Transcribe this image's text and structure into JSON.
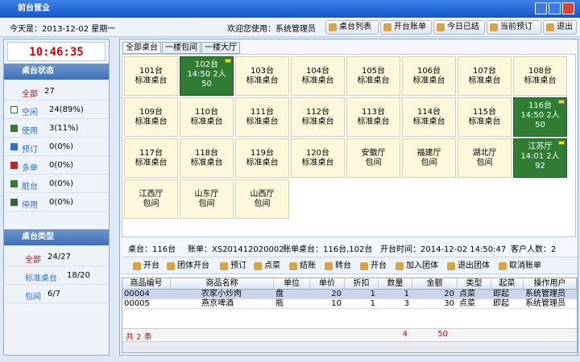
{
  "window": {
    "title": "前台营业"
  },
  "header": {
    "date": "今天是：2013-12-02 星期一",
    "welcome": "欢迎您使用：系统管理员",
    "buttons": [
      "桌台列表",
      "开台账单",
      "今日已结",
      "当前预订",
      "退出"
    ]
  },
  "sidebar": {
    "clock": "10:46:35",
    "status_title": "桌台状态",
    "status": [
      {
        "label": "全部",
        "count": "27"
      },
      {
        "label": "空闲",
        "count": "24(89%)"
      },
      {
        "label": "使用",
        "count": "3(11%)"
      },
      {
        "label": "预订",
        "count": "0(0%)"
      },
      {
        "label": "多单",
        "count": "0(0%)"
      },
      {
        "label": "脏台",
        "count": "0(0%)"
      },
      {
        "label": "停用",
        "count": "0(0%)"
      }
    ],
    "type_title": "桌台类型",
    "types": [
      {
        "label": "全部",
        "count": "24/27"
      },
      {
        "label": "标准桌台",
        "count": "18/20"
      },
      {
        "label": "包间",
        "count": "6/7"
      }
    ]
  },
  "tabs": [
    "全部桌台",
    "一楼包间",
    "一楼大厅"
  ],
  "tables": [
    {
      "lines": [
        "101台",
        "标准桌台"
      ]
    },
    {
      "lines": [
        "102台",
        "14:50 2人",
        "50"
      ],
      "status": "used"
    },
    {
      "lines": [
        "103台",
        "标准桌台"
      ]
    },
    {
      "lines": [
        "104台",
        "标准桌台"
      ]
    },
    {
      "lines": [
        "105台",
        "标准桌台"
      ]
    },
    {
      "lines": [
        "106台",
        "标准桌台"
      ]
    },
    {
      "lines": [
        "107台",
        "标准桌台"
      ]
    },
    {
      "lines": [
        "108台",
        "标准桌台"
      ]
    },
    {
      "lines": [
        "109台",
        "标准桌台"
      ]
    },
    {
      "lines": [
        "110台",
        "标准桌台"
      ]
    },
    {
      "lines": [
        "111台",
        "标准桌台"
      ]
    },
    {
      "lines": [
        "112台",
        "标准桌台"
      ]
    },
    {
      "lines": [
        "113台",
        "标准桌台"
      ]
    },
    {
      "lines": [
        "114台",
        "标准桌台"
      ]
    },
    {
      "lines": [
        "115台",
        "标准桌台"
      ]
    },
    {
      "lines": [
        "116台",
        "14:50 2人",
        "50"
      ],
      "status": "used"
    },
    {
      "lines": [
        "117台",
        "标准桌台"
      ]
    },
    {
      "lines": [
        "118台",
        "标准桌台"
      ]
    },
    {
      "lines": [
        "119台",
        "标准桌台"
      ]
    },
    {
      "lines": [
        "120台",
        "标准桌台"
      ]
    },
    {
      "lines": [
        "安徽厅",
        "包间"
      ]
    },
    {
      "lines": [
        "福建厅",
        "包间"
      ]
    },
    {
      "lines": [
        "湖北厅",
        "包间"
      ]
    },
    {
      "lines": [
        "江苏厅",
        "14:01 2人",
        "92"
      ],
      "status": "used"
    },
    {
      "lines": [
        "江西厅",
        "包间"
      ]
    },
    {
      "lines": [
        "山东厅",
        "包间"
      ]
    },
    {
      "lines": [
        "山西厅",
        "包间"
      ]
    }
  ],
  "bill_info": [
    "桌台：116台",
    "账单：XS201412020002",
    "账单桌台：116台,102台",
    "开台时间：2014-12-02 14:50:47",
    "客户人数：2"
  ],
  "toolbar": [
    "开台",
    "团体开台",
    "预订",
    "点菜",
    "结账",
    "转台",
    "开台",
    "加入团体",
    "退出团体",
    "取消账单"
  ],
  "items": {
    "columns": [
      "商品编号",
      "商品名称",
      "单位",
      "单价",
      "折扣",
      "数量",
      "金额",
      "类型",
      "起菜",
      "操作用户"
    ],
    "rows": [
      [
        "00004",
        "农家小炒肉",
        "盘",
        20,
        1,
        1,
        20,
        "点菜",
        "即起",
        "系统管理员"
      ],
      [
        "00005",
        "燕京啤酒",
        "瓶",
        10,
        1,
        3,
        30,
        "点菜",
        "即起",
        "系统管理员"
      ]
    ],
    "footer": {
      "count": "共 2 条",
      "quantity": 4,
      "amount": 50
    }
  }
}
